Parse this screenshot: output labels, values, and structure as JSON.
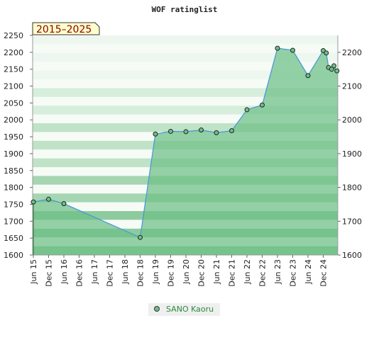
{
  "chart_data": {
    "type": "area",
    "title": "WOF ratinglist",
    "badge": "2015–2025",
    "xlabel": "",
    "ylabel": "",
    "ylim": [
      1600,
      2250
    ],
    "left_ticks": [
      1600,
      1650,
      1700,
      1750,
      1800,
      1850,
      1900,
      1950,
      2000,
      2050,
      2100,
      2150,
      2200,
      2250
    ],
    "right_ticks": [
      1600,
      1700,
      1800,
      1900,
      2000,
      2100,
      2200
    ],
    "x_ticks": [
      "Jun 15",
      "Dec 15",
      "Jun 16",
      "Dec 16",
      "Jun 17",
      "Dec 17",
      "Jun 18",
      "Dec 18",
      "Jun 19",
      "Dec 19",
      "Jun 20",
      "Dec 20",
      "Jun 21",
      "Dec 21",
      "Jun 22",
      "Dec 22",
      "Jun 23",
      "Dec 23",
      "Jun 24",
      "Dec 24"
    ],
    "grid": true,
    "legend_placement": "bottom-center",
    "series": [
      {
        "name": "SANO Kaoru",
        "color": "#4a9ad8",
        "fill": "#6dbf86",
        "points": [
          {
            "x": 0.0,
            "y": 1757
          },
          {
            "x": 1.0,
            "y": 1765
          },
          {
            "x": 2.0,
            "y": 1752
          },
          {
            "x": 7.0,
            "y": 1652
          },
          {
            "x": 8.0,
            "y": 1958
          },
          {
            "x": 9.0,
            "y": 1966
          },
          {
            "x": 10.0,
            "y": 1965
          },
          {
            "x": 11.0,
            "y": 1970
          },
          {
            "x": 12.0,
            "y": 1962
          },
          {
            "x": 13.0,
            "y": 1968
          },
          {
            "x": 14.0,
            "y": 2030
          },
          {
            "x": 15.0,
            "y": 2044
          },
          {
            "x": 16.0,
            "y": 2212
          },
          {
            "x": 17.0,
            "y": 2206
          },
          {
            "x": 18.0,
            "y": 2131
          },
          {
            "x": 19.0,
            "y": 2205
          },
          {
            "x": 19.2,
            "y": 2198
          },
          {
            "x": 19.35,
            "y": 2155
          },
          {
            "x": 19.55,
            "y": 2150
          },
          {
            "x": 19.7,
            "y": 2160
          },
          {
            "x": 19.9,
            "y": 2145
          }
        ]
      }
    ]
  }
}
